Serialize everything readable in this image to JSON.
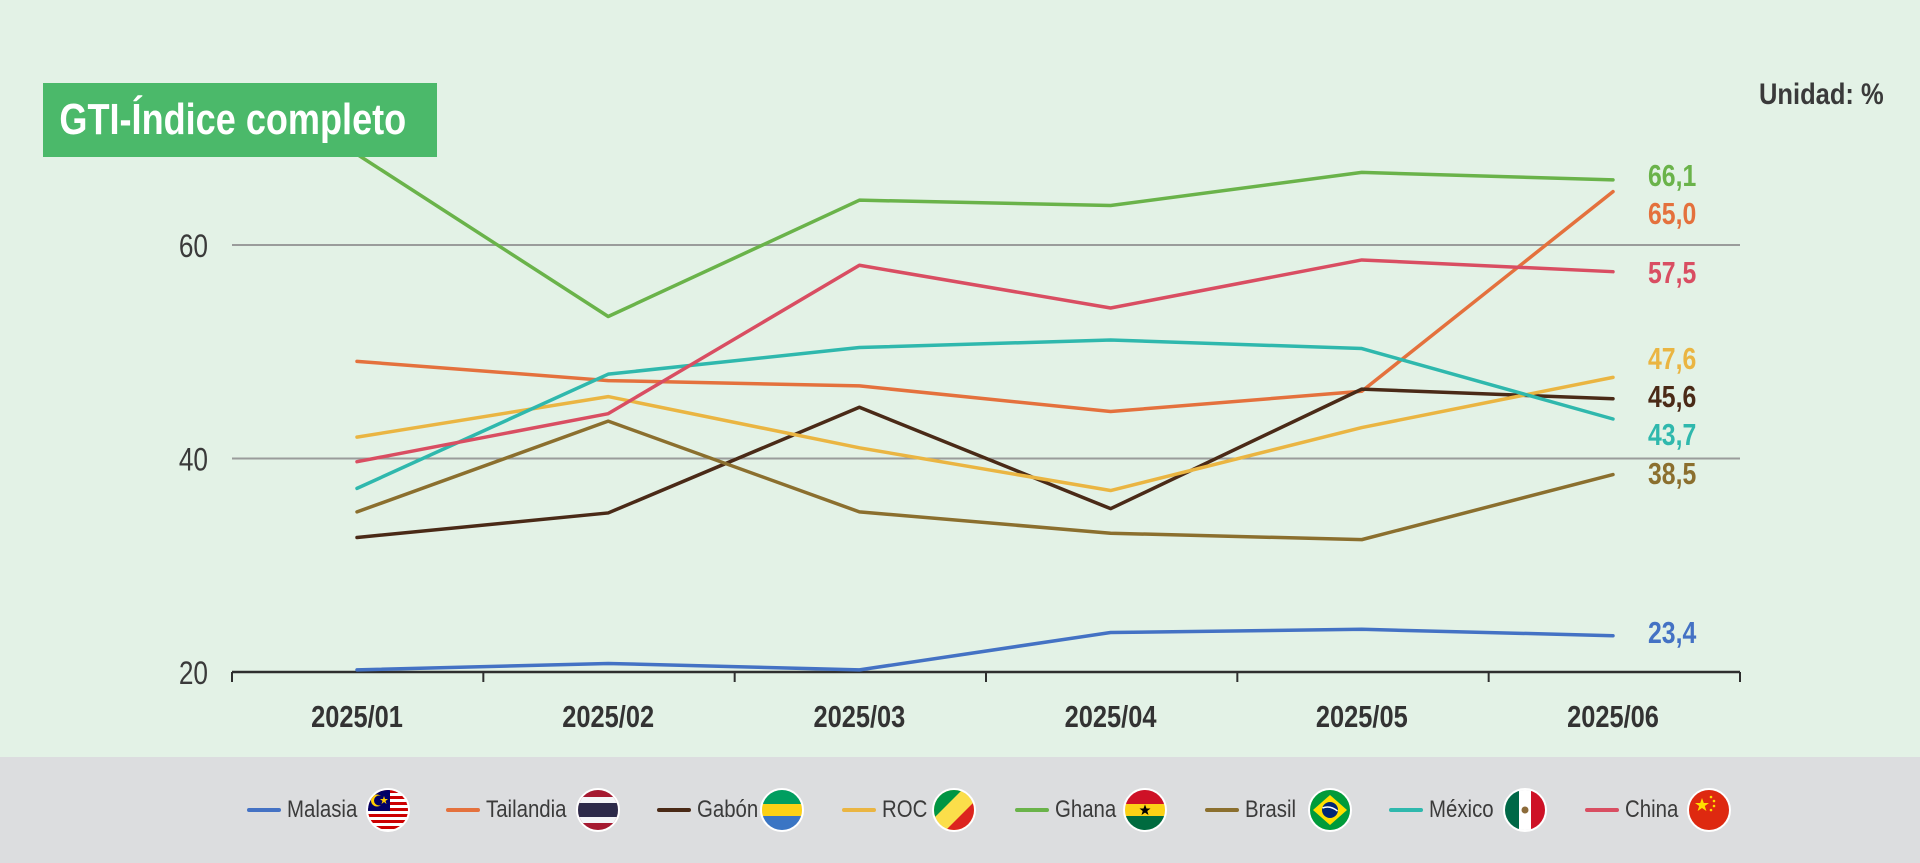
{
  "title": "GTI-Índice completo",
  "unit": "Unidad: %",
  "chart_data": {
    "type": "line",
    "categories": [
      "2025/01",
      "2025/02",
      "2025/03",
      "2025/04",
      "2025/05",
      "2025/06"
    ],
    "ylim": [
      20,
      66.1
    ],
    "yticks": [
      20,
      40,
      60
    ],
    "grid": true,
    "legend_position": "bottom",
    "series": [
      {
        "name": "Malasia",
        "color": "#4472c4",
        "values": [
          20.2,
          20.8,
          20.2,
          23.7,
          24.0,
          23.4
        ],
        "end_label": "23,4",
        "flag": "malaysia-flag-icon"
      },
      {
        "name": "Tailandia",
        "color": "#e4713d",
        "values": [
          49.1,
          47.3,
          46.8,
          44.4,
          46.3,
          65.0
        ],
        "end_label": "65,0",
        "flag": "thailand-flag-icon"
      },
      {
        "name": "Gabón",
        "color": "#4a2a17",
        "values": [
          32.6,
          34.9,
          44.8,
          35.3,
          46.5,
          45.6
        ],
        "end_label": "45,6",
        "flag": "gabon-flag-icon"
      },
      {
        "name": "ROC",
        "color": "#eab542",
        "values": [
          42.0,
          45.8,
          41.0,
          37.0,
          42.9,
          47.6
        ],
        "end_label": "47,6",
        "flag": "congo-flag-icon"
      },
      {
        "name": "Ghana",
        "color": "#6ab34a",
        "values": [
          68.5,
          53.3,
          64.2,
          63.7,
          66.8,
          66.1
        ],
        "end_label": "66,1",
        "flag": "ghana-flag-icon"
      },
      {
        "name": "Brasil",
        "color": "#8b6f2e",
        "values": [
          35.0,
          43.5,
          35.0,
          33.0,
          32.4,
          38.5
        ],
        "end_label": "38,5",
        "flag": "brazil-flag-icon"
      },
      {
        "name": "México",
        "color": "#2fb8ad",
        "values": [
          37.2,
          47.9,
          50.4,
          51.1,
          50.3,
          43.7
        ],
        "end_label": "43,7",
        "flag": "mexico-flag-icon"
      },
      {
        "name": "China",
        "color": "#d94e62",
        "values": [
          39.7,
          44.2,
          58.1,
          54.1,
          58.6,
          57.5
        ],
        "end_label": "57,5",
        "flag": "china-flag-icon"
      }
    ]
  }
}
